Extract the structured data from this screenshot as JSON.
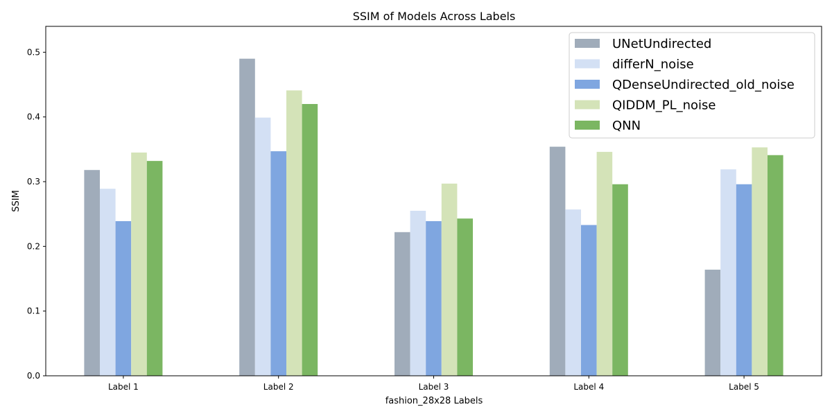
{
  "chart_data": {
    "type": "bar",
    "title": "SSIM of Models Across Labels",
    "xlabel": "fashion_28x28 Labels",
    "ylabel": "SSIM",
    "ylim": [
      0,
      0.54
    ],
    "yticks": [
      0.0,
      0.1,
      0.2,
      0.3,
      0.4,
      0.5
    ],
    "ytick_labels": [
      "0.0",
      "0.1",
      "0.2",
      "0.3",
      "0.4",
      "0.5"
    ],
    "categories": [
      "Label 1",
      "Label 2",
      "Label 3",
      "Label 4",
      "Label 5"
    ],
    "legend_position": "top-right",
    "grid": false,
    "series": [
      {
        "name": "UNetUndirected",
        "color": "#a0acba",
        "values": [
          0.318,
          0.49,
          0.222,
          0.354,
          0.164
        ]
      },
      {
        "name": "differN_noise",
        "color": "#d3e0f4",
        "values": [
          0.289,
          0.399,
          0.255,
          0.257,
          0.319
        ]
      },
      {
        "name": "QDenseUndirected_old_noise",
        "color": "#7fa6e0",
        "values": [
          0.239,
          0.347,
          0.239,
          0.233,
          0.296
        ]
      },
      {
        "name": "QIDDM_PL_noise",
        "color": "#d4e3b8",
        "values": [
          0.345,
          0.441,
          0.297,
          0.346,
          0.353
        ]
      },
      {
        "name": "QNN",
        "color": "#7bb662",
        "values": [
          0.332,
          0.42,
          0.243,
          0.296,
          0.341
        ]
      }
    ]
  }
}
